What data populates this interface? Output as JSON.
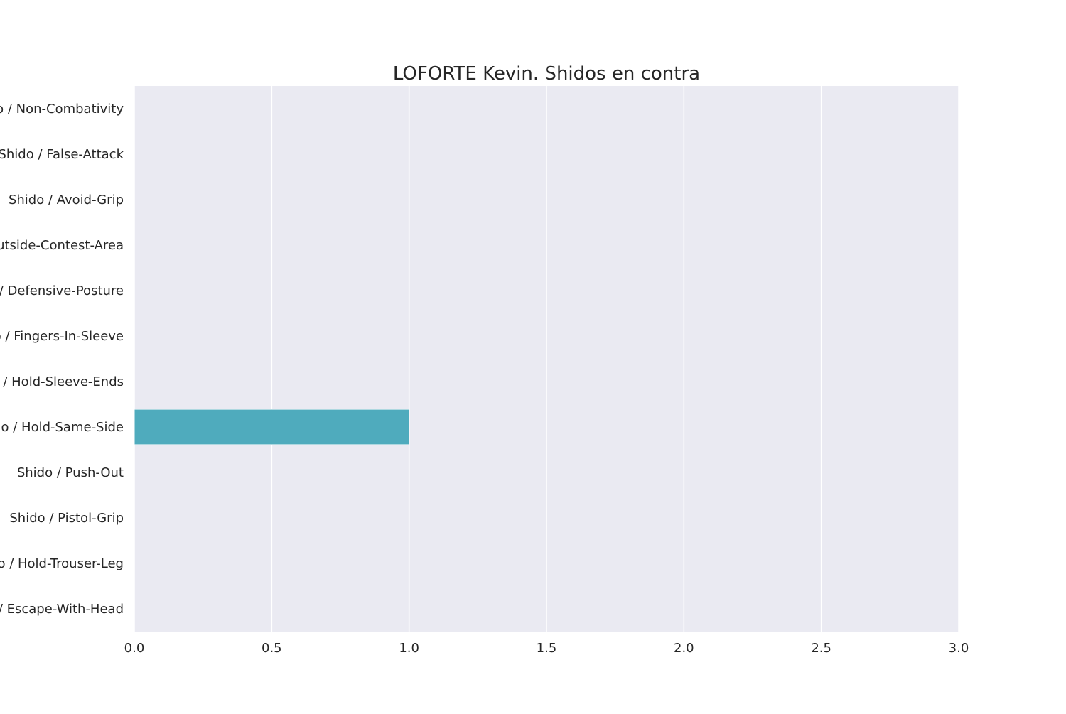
{
  "chart_data": {
    "type": "bar",
    "orientation": "horizontal",
    "title": "LOFORTE Kevin. Shidos en contra",
    "xlabel": "",
    "ylabel": "",
    "xlim": [
      0,
      3
    ],
    "x_ticks": [
      "0.0",
      "0.5",
      "1.0",
      "1.5",
      "2.0",
      "2.5",
      "3.0"
    ],
    "grid": true,
    "legend": "none",
    "categories": [
      "Shido / Non-Combativity",
      "Shido / False-Attack",
      "Shido / Avoid-Grip",
      "Shido / Outside-Contest-Area",
      "Shido / Defensive-Posture",
      "Shido / Fingers-In-Sleeve",
      "Shido / Hold-Sleeve-Ends",
      "Shido / Hold-Same-Side",
      "Shido / Push-Out",
      "Shido / Pistol-Grip",
      "Shido / Hold-Trouser-Leg",
      "Shido / Escape-With-Head"
    ],
    "values": [
      0,
      0,
      0,
      0,
      0,
      0,
      0,
      1,
      0,
      0,
      0,
      0
    ],
    "colors": {
      "background": "#eaeaf2",
      "grid": "#ffffff",
      "bar": "#4fabbd"
    }
  }
}
